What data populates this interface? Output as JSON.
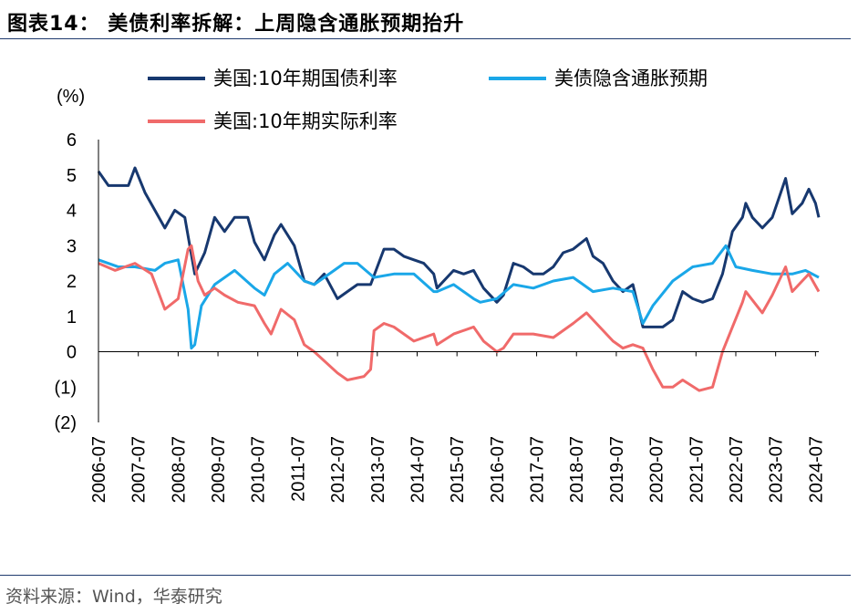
{
  "header": {
    "figure_title": "图表14：  美债利率拆解：上周隐含通胀预期抬升"
  },
  "footer": {
    "source": "资料来源：Wind，华泰研究"
  },
  "chart_data": {
    "type": "line",
    "ylabel": "(%)",
    "ylim": [
      -2,
      6
    ],
    "y_ticks": [
      6,
      5,
      4,
      3,
      2,
      1,
      0,
      -1,
      -2
    ],
    "y_tick_labels": [
      "6",
      "5",
      "4",
      "3",
      "2",
      "1",
      "0",
      "(1)",
      "(2)"
    ],
    "x_tick_labels": [
      "2006-07",
      "2007-07",
      "2008-07",
      "2009-07",
      "2010-07",
      "2011-07",
      "2012-07",
      "2013-07",
      "2014-07",
      "2015-07",
      "2016-07",
      "2017-07",
      "2018-07",
      "2019-07",
      "2020-07",
      "2021-07",
      "2022-07",
      "2023-07",
      "2024-07"
    ],
    "x_range": [
      "2006-07",
      "2024-08"
    ],
    "grid": false,
    "legend_position": "top",
    "series": [
      {
        "name": "美国:10年期国债利率",
        "color": "#17386f",
        "x": [
          "2006-07",
          "2006-10",
          "2007-01",
          "2007-04",
          "2007-06",
          "2007-09",
          "2007-12",
          "2008-03",
          "2008-06",
          "2008-09",
          "2008-12",
          "2009-03",
          "2009-06",
          "2009-09",
          "2009-12",
          "2010-04",
          "2010-06",
          "2010-09",
          "2010-12",
          "2011-02",
          "2011-06",
          "2011-09",
          "2011-12",
          "2012-03",
          "2012-07",
          "2012-10",
          "2013-01",
          "2013-05",
          "2013-09",
          "2013-12",
          "2014-03",
          "2014-06",
          "2014-09",
          "2014-12",
          "2015-01",
          "2015-06",
          "2015-09",
          "2015-12",
          "2016-03",
          "2016-07",
          "2016-09",
          "2016-12",
          "2017-03",
          "2017-06",
          "2017-09",
          "2017-12",
          "2018-03",
          "2018-06",
          "2018-10",
          "2018-12",
          "2019-03",
          "2019-06",
          "2019-09",
          "2019-12",
          "2020-03",
          "2020-06",
          "2020-09",
          "2020-12",
          "2021-03",
          "2021-06",
          "2021-09",
          "2021-12",
          "2022-03",
          "2022-06",
          "2022-09",
          "2022-10",
          "2022-12",
          "2023-03",
          "2023-06",
          "2023-10",
          "2023-12",
          "2024-03",
          "2024-05",
          "2024-07",
          "2024-08"
        ],
        "values": [
          5.1,
          4.7,
          4.7,
          4.7,
          5.2,
          4.5,
          4.0,
          3.5,
          4.0,
          3.8,
          2.2,
          2.8,
          3.8,
          3.4,
          3.8,
          3.8,
          3.1,
          2.6,
          3.3,
          3.6,
          3.0,
          2.0,
          1.9,
          2.2,
          1.5,
          1.7,
          1.9,
          1.9,
          2.9,
          2.9,
          2.7,
          2.6,
          2.5,
          2.2,
          1.8,
          2.3,
          2.2,
          2.3,
          1.8,
          1.4,
          1.6,
          2.5,
          2.4,
          2.2,
          2.2,
          2.4,
          2.8,
          2.9,
          3.2,
          2.7,
          2.5,
          2.0,
          1.7,
          1.9,
          0.7,
          0.7,
          0.7,
          0.9,
          1.7,
          1.5,
          1.4,
          1.5,
          2.2,
          3.4,
          3.8,
          4.2,
          3.8,
          3.5,
          3.8,
          4.9,
          3.9,
          4.2,
          4.6,
          4.2,
          3.8
        ]
      },
      {
        "name": "美债隐含通胀预期",
        "color": "#1aa7e8",
        "x": [
          "2006-07",
          "2007-01",
          "2007-06",
          "2007-12",
          "2008-03",
          "2008-07",
          "2008-10",
          "2008-11",
          "2008-12",
          "2009-02",
          "2009-06",
          "2009-12",
          "2010-06",
          "2010-09",
          "2010-12",
          "2011-04",
          "2011-09",
          "2011-12",
          "2012-06",
          "2012-09",
          "2013-01",
          "2013-06",
          "2013-12",
          "2014-06",
          "2014-12",
          "2015-01",
          "2015-06",
          "2015-12",
          "2016-02",
          "2016-07",
          "2016-12",
          "2017-06",
          "2017-12",
          "2018-06",
          "2018-12",
          "2019-06",
          "2019-12",
          "2020-03",
          "2020-06",
          "2020-12",
          "2021-06",
          "2021-12",
          "2022-04",
          "2022-07",
          "2022-12",
          "2023-06",
          "2023-12",
          "2024-04",
          "2024-08"
        ],
        "values": [
          2.6,
          2.4,
          2.4,
          2.3,
          2.5,
          2.6,
          1.2,
          0.1,
          0.2,
          1.3,
          1.9,
          2.3,
          1.8,
          1.6,
          2.2,
          2.5,
          2.0,
          1.9,
          2.3,
          2.5,
          2.5,
          2.1,
          2.2,
          2.2,
          1.7,
          1.7,
          1.9,
          1.5,
          1.4,
          1.5,
          1.9,
          1.8,
          2.0,
          2.1,
          1.7,
          1.8,
          1.7,
          0.8,
          1.3,
          2.0,
          2.4,
          2.5,
          3.0,
          2.4,
          2.3,
          2.2,
          2.2,
          2.3,
          2.1
        ]
      },
      {
        "name": "美国:10年期实际利率",
        "color": "#f06a6a",
        "x": [
          "2006-07",
          "2006-12",
          "2007-06",
          "2007-11",
          "2008-03",
          "2008-07",
          "2008-10",
          "2008-11",
          "2009-01",
          "2009-03",
          "2009-06",
          "2009-09",
          "2010-01",
          "2010-06",
          "2010-09",
          "2010-11",
          "2011-02",
          "2011-06",
          "2011-09",
          "2011-12",
          "2012-07",
          "2012-10",
          "2013-03",
          "2013-05",
          "2013-06",
          "2013-09",
          "2013-12",
          "2014-06",
          "2014-12",
          "2015-01",
          "2015-06",
          "2015-12",
          "2016-03",
          "2016-07",
          "2016-09",
          "2016-12",
          "2017-06",
          "2017-12",
          "2018-06",
          "2018-10",
          "2019-01",
          "2019-06",
          "2019-09",
          "2019-12",
          "2020-03",
          "2020-06",
          "2020-09",
          "2020-12",
          "2021-03",
          "2021-08",
          "2021-12",
          "2022-03",
          "2022-06",
          "2022-09",
          "2022-10",
          "2023-03",
          "2023-06",
          "2023-10",
          "2023-12",
          "2024-03",
          "2024-05",
          "2024-08"
        ],
        "values": [
          2.5,
          2.3,
          2.5,
          2.2,
          1.2,
          1.5,
          2.9,
          3.0,
          2.0,
          1.6,
          1.8,
          1.6,
          1.4,
          1.3,
          0.8,
          0.5,
          1.2,
          0.9,
          0.2,
          0.0,
          -0.6,
          -0.8,
          -0.7,
          -0.5,
          0.6,
          0.8,
          0.7,
          0.3,
          0.5,
          0.2,
          0.5,
          0.7,
          0.3,
          0.0,
          0.1,
          0.5,
          0.5,
          0.4,
          0.8,
          1.1,
          0.8,
          0.3,
          0.1,
          0.2,
          0.1,
          -0.5,
          -1.0,
          -1.0,
          -0.8,
          -1.1,
          -1.0,
          0.0,
          0.7,
          1.4,
          1.7,
          1.1,
          1.6,
          2.4,
          1.7,
          2.0,
          2.2,
          1.7
        ]
      }
    ]
  }
}
